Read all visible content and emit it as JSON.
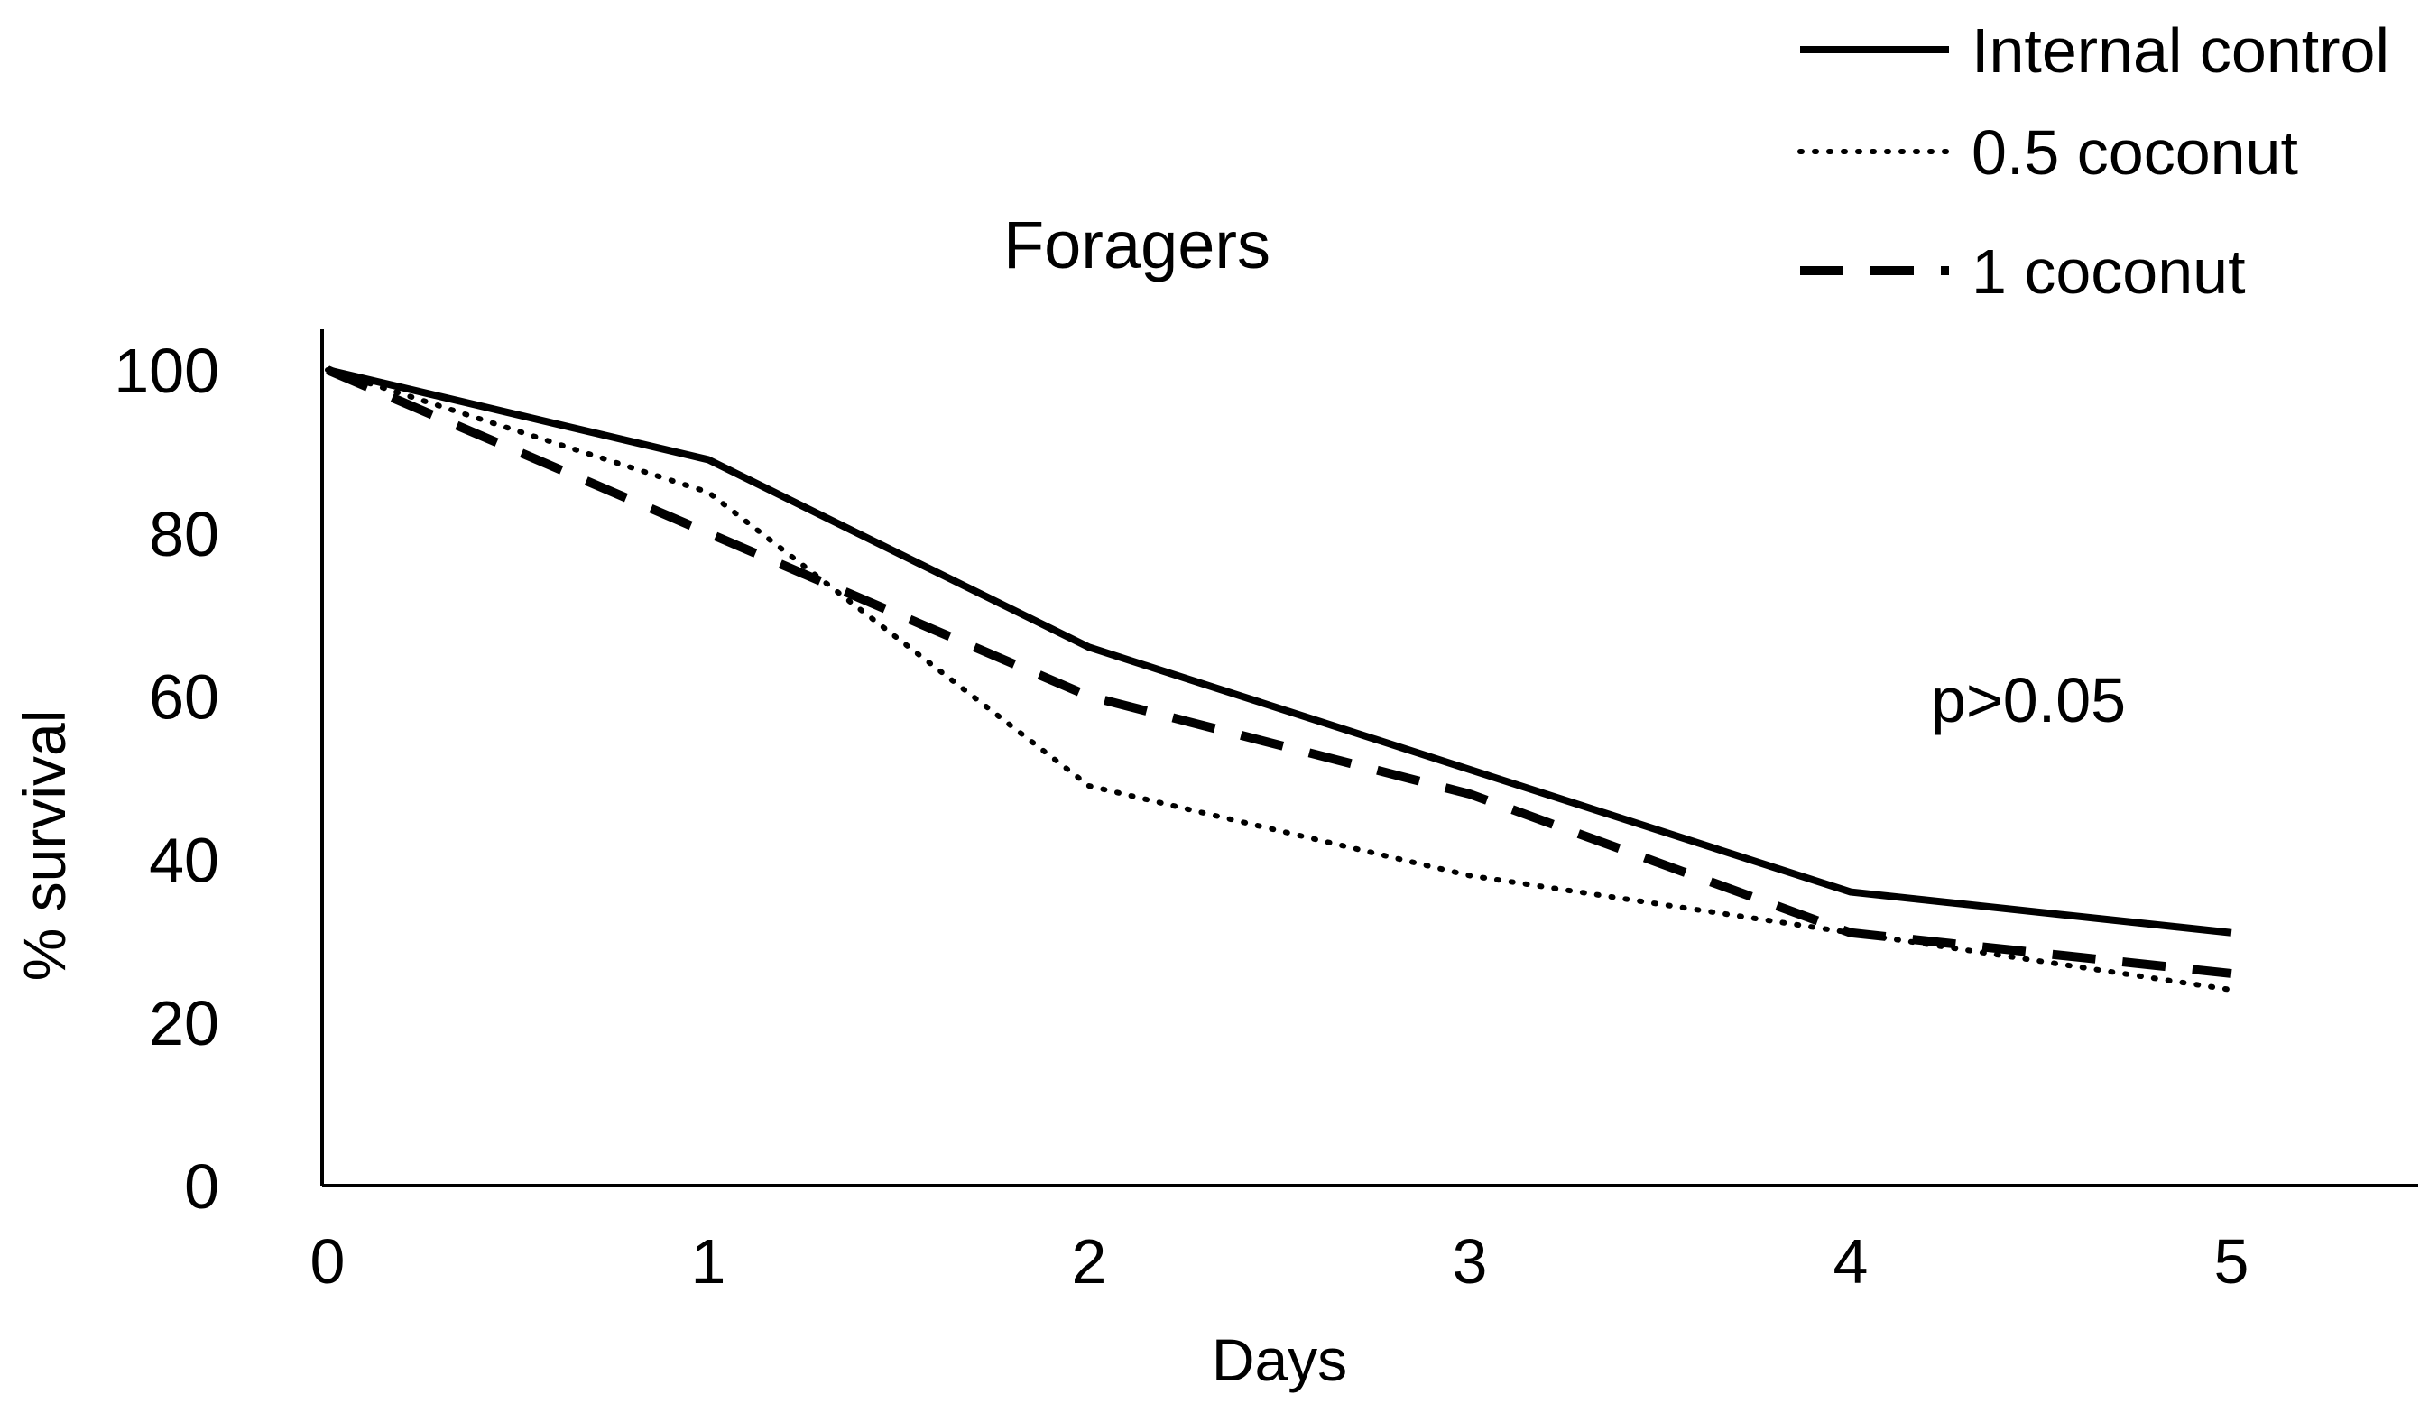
{
  "chart_data": {
    "type": "line",
    "title": "Foragers",
    "xlabel": "Days",
    "ylabel": "% survival",
    "x": [
      0,
      1,
      2,
      3,
      4,
      5
    ],
    "x_tick_labels": [
      "0",
      "1",
      "2",
      "3",
      "4",
      "5"
    ],
    "y_tick_labels": [
      "0",
      "20",
      "40",
      "60",
      "80",
      "100"
    ],
    "xlim": [
      0,
      5.5
    ],
    "ylim": [
      0,
      100
    ],
    "y_ticks": [
      0,
      20,
      40,
      60,
      80,
      100
    ],
    "grid": false,
    "legend_position": "top-right",
    "series": [
      {
        "name": "Internal control",
        "style": "solid",
        "values": [
          100,
          89,
          66,
          51,
          36,
          31
        ]
      },
      {
        "name": "0.5 coconut",
        "style": "dotted",
        "values": [
          100,
          85,
          49,
          38,
          31,
          24
        ]
      },
      {
        "name": "1 coconut",
        "style": "dashed",
        "values": [
          100,
          80,
          60,
          48,
          31,
          26
        ]
      }
    ],
    "annotation": "p>0.05"
  }
}
